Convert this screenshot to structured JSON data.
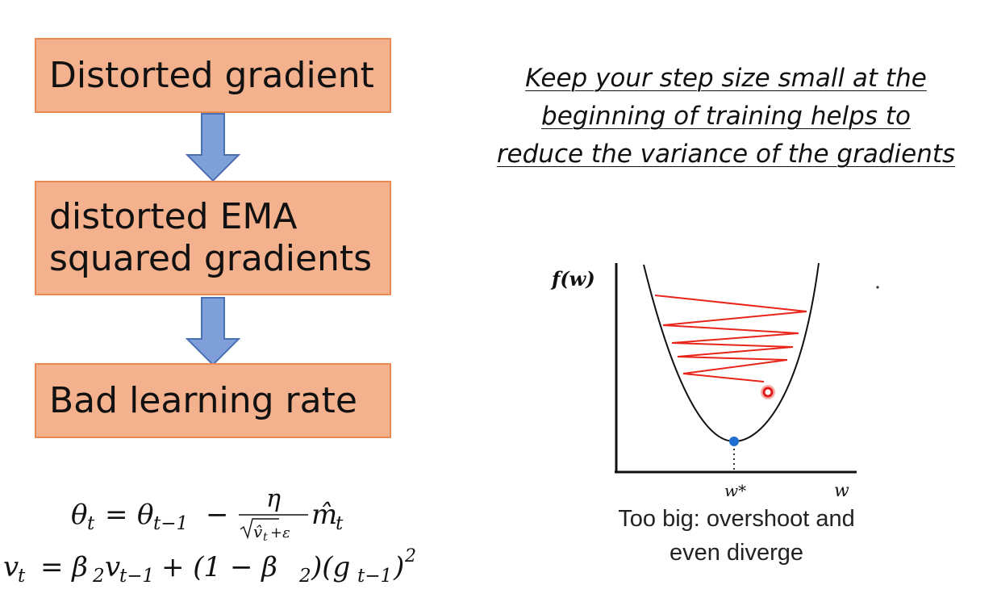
{
  "flow": {
    "box1": "Distorted gradient",
    "box2_line1": "distorted EMA",
    "box2_line2": "squared gradients",
    "box3": "Bad learning rate"
  },
  "note": {
    "line1": "Keep your step size small at the",
    "line2": "beginning of training helps to",
    "line3": "reduce the variance of the gradients"
  },
  "formulas": {
    "update": {
      "lhs": "θ",
      "lhs_sub": "t",
      "eq": "=",
      "rhs": "θ",
      "rhs_sub": "t−1",
      "minus": "−",
      "numerator": "η",
      "denominator": "v̂",
      "denominator_sub": "t",
      "denominator_tail": "+ε",
      "m": "m̂",
      "m_sub": "t"
    },
    "ema": {
      "lhs": "v",
      "lhs_sub": "t",
      "rhs": "= β",
      "beta_sub": "2",
      "v": "v",
      "v_sub": "t−1",
      "plus": "+ (1 − β",
      "beta2_sub": "2",
      "tail": ")(g",
      "g_sub": "t−1",
      "close": ")",
      "power": "2"
    }
  },
  "plot": {
    "y_label": "f(w)",
    "x_label": "w",
    "min_label": "w*",
    "curve_color": "#111111",
    "path_color": "#e8251b",
    "min_color": "#1f6fd0"
  },
  "caption": {
    "line1": "Too big: overshoot and",
    "line2": "even diverge"
  }
}
